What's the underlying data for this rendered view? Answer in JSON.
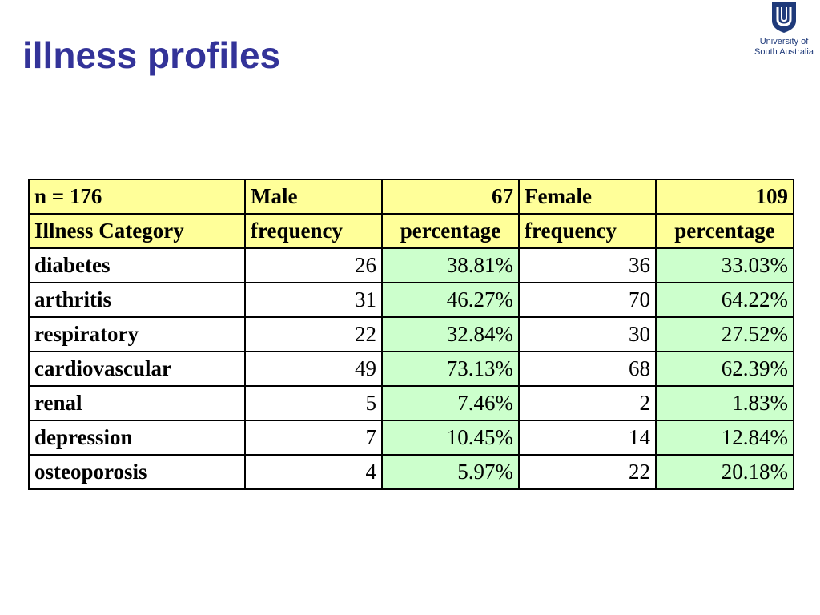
{
  "title": "illness profiles",
  "logo": {
    "line1": "University of",
    "line2": "South Australia"
  },
  "table": {
    "header1": {
      "n": "n = 176",
      "male_label": "Male",
      "male_count": "67",
      "female_label": "Female",
      "female_count": "109"
    },
    "header2": {
      "category": "Illness Category",
      "male_freq": "frequency",
      "male_pct": "percentage",
      "female_freq": "frequency",
      "female_pct": "percentage"
    },
    "rows": [
      {
        "category": "diabetes",
        "male_freq": "26",
        "male_pct": "38.81%",
        "female_freq": "36",
        "female_pct": "33.03%"
      },
      {
        "category": "arthritis",
        "male_freq": "31",
        "male_pct": "46.27%",
        "female_freq": "70",
        "female_pct": "64.22%"
      },
      {
        "category": "respiratory",
        "male_freq": "22",
        "male_pct": "32.84%",
        "female_freq": "30",
        "female_pct": "27.52%"
      },
      {
        "category": "cardiovascular",
        "male_freq": "49",
        "male_pct": "73.13%",
        "female_freq": "68",
        "female_pct": "62.39%"
      },
      {
        "category": "renal",
        "male_freq": "5",
        "male_pct": "7.46%",
        "female_freq": "2",
        "female_pct": "1.83%"
      },
      {
        "category": "depression",
        "male_freq": "7",
        "male_pct": "10.45%",
        "female_freq": "14",
        "female_pct": "12.84%"
      },
      {
        "category": "osteoporosis",
        "male_freq": "4",
        "male_pct": "5.97%",
        "female_freq": "22",
        "female_pct": "20.18%"
      }
    ]
  },
  "colors": {
    "title": "#333399",
    "header_fill": "#ffff99",
    "percentage_fill": "#ccffcc",
    "logo": "#1f3a7a"
  }
}
